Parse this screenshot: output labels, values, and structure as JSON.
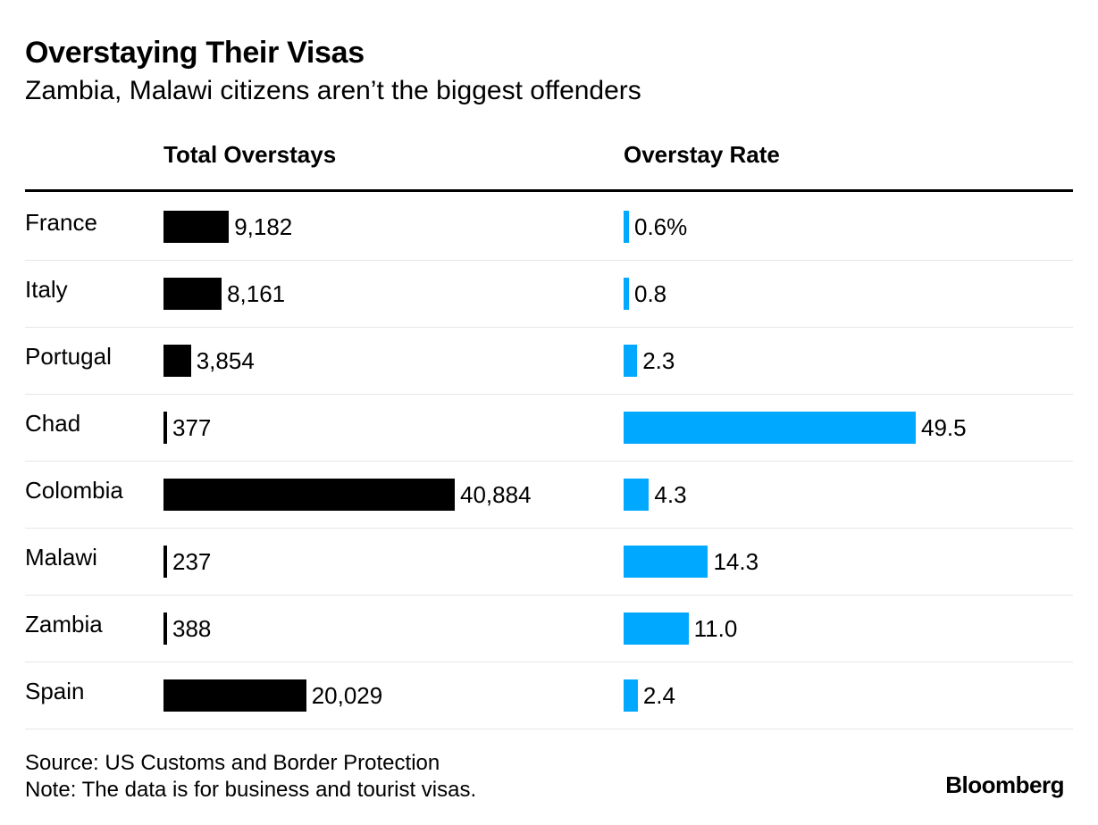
{
  "chart_data": {
    "type": "bar",
    "title": "Overstaying Their Visas",
    "subtitle": "Zambia, Malawi citizens aren’t the biggest offenders",
    "categories": [
      "France",
      "Italy",
      "Portugal",
      "Chad",
      "Colombia",
      "Malawi",
      "Zambia",
      "Spain"
    ],
    "series": [
      {
        "name": "Total Overstays",
        "values": [
          9182,
          8161,
          3854,
          377,
          40884,
          237,
          388,
          20029
        ],
        "labels": [
          "9,182",
          "8,161",
          "3,854",
          "377",
          "40,884",
          "237",
          "388",
          "20,029"
        ],
        "color": "#000000"
      },
      {
        "name": "Overstay Rate",
        "values": [
          0.6,
          0.8,
          2.3,
          49.5,
          4.3,
          14.3,
          11.0,
          2.4
        ],
        "labels": [
          "0.6%",
          "0.8",
          "2.3",
          "49.5",
          "4.3",
          "14.3",
          "11.0",
          "2.4"
        ],
        "color": "#00a8ff"
      }
    ],
    "orientation": "horizontal",
    "grid": false,
    "source": "Source: US Customs and Border Protection",
    "note": "Note: The data is for business and tourist visas.",
    "brand": "Bloomberg"
  }
}
